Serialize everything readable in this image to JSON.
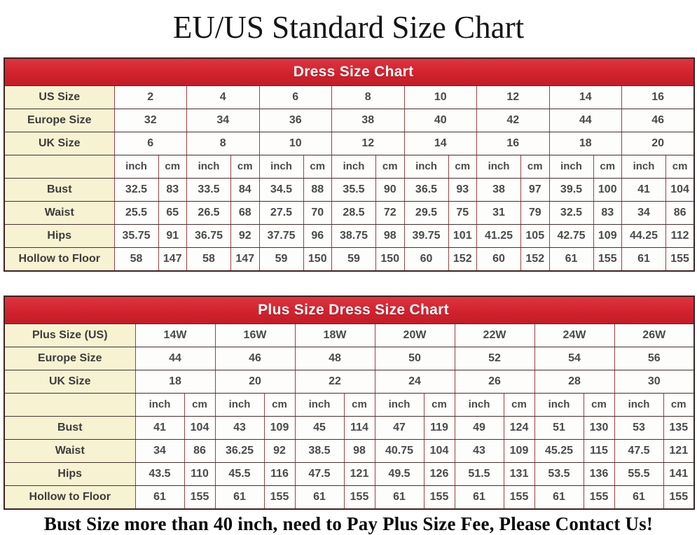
{
  "page": {
    "title": "EU/US Standard Size Chart",
    "footer_note": "Bust Size more than 40 inch, need to Pay Plus Size Fee, Please Contact Us!"
  },
  "colors": {
    "header_bar_red": "#d2232e",
    "label_cell_cream": "#f7f2d2",
    "border_maroon": "#9a4343",
    "cell_text_gray": "#4a4a4a",
    "header_text_white": "#ffffff"
  },
  "chart_data": [
    {
      "type": "table",
      "title": "Dress Size Chart",
      "unit_labels": [
        "inch",
        "cm"
      ],
      "pair_count": 8,
      "size_rows": [
        {
          "label": "US Size",
          "values": [
            "2",
            "4",
            "6",
            "8",
            "10",
            "12",
            "14",
            "16"
          ]
        },
        {
          "label": "Europe Size",
          "values": [
            "32",
            "34",
            "36",
            "38",
            "40",
            "42",
            "44",
            "46"
          ]
        },
        {
          "label": "UK Size",
          "values": [
            "6",
            "8",
            "10",
            "12",
            "14",
            "16",
            "18",
            "20"
          ]
        }
      ],
      "measure_rows": [
        {
          "label": "Bust",
          "values": [
            "32.5",
            "83",
            "33.5",
            "84",
            "34.5",
            "88",
            "35.5",
            "90",
            "36.5",
            "93",
            "38",
            "97",
            "39.5",
            "100",
            "41",
            "104"
          ]
        },
        {
          "label": "Waist",
          "values": [
            "25.5",
            "65",
            "26.5",
            "68",
            "27.5",
            "70",
            "28.5",
            "72",
            "29.5",
            "75",
            "31",
            "79",
            "32.5",
            "83",
            "34",
            "86"
          ]
        },
        {
          "label": "Hips",
          "values": [
            "35.75",
            "91",
            "36.75",
            "92",
            "37.75",
            "96",
            "38.75",
            "98",
            "39.75",
            "101",
            "41.25",
            "105",
            "42.75",
            "109",
            "44.25",
            "112"
          ]
        },
        {
          "label": "Hollow to Floor",
          "values": [
            "58",
            "147",
            "58",
            "147",
            "59",
            "150",
            "59",
            "150",
            "60",
            "152",
            "60",
            "152",
            "61",
            "155",
            "61",
            "155"
          ]
        }
      ]
    },
    {
      "type": "table",
      "title": "Plus Size Dress Size Chart",
      "unit_labels": [
        "inch",
        "cm"
      ],
      "pair_count": 7,
      "size_rows": [
        {
          "label": "Plus Size (US)",
          "values": [
            "14W",
            "16W",
            "18W",
            "20W",
            "22W",
            "24W",
            "26W"
          ]
        },
        {
          "label": "Europe Size",
          "values": [
            "44",
            "46",
            "48",
            "50",
            "52",
            "54",
            "56"
          ]
        },
        {
          "label": "UK Size",
          "values": [
            "18",
            "20",
            "22",
            "24",
            "26",
            "28",
            "30"
          ]
        }
      ],
      "measure_rows": [
        {
          "label": "Bust",
          "values": [
            "41",
            "104",
            "43",
            "109",
            "45",
            "114",
            "47",
            "119",
            "49",
            "124",
            "51",
            "130",
            "53",
            "135"
          ]
        },
        {
          "label": "Waist",
          "values": [
            "34",
            "86",
            "36.25",
            "92",
            "38.5",
            "98",
            "40.75",
            "104",
            "43",
            "109",
            "45.25",
            "115",
            "47.5",
            "121"
          ]
        },
        {
          "label": "Hips",
          "values": [
            "43.5",
            "110",
            "45.5",
            "116",
            "47.5",
            "121",
            "49.5",
            "126",
            "51.5",
            "131",
            "53.5",
            "136",
            "55.5",
            "141"
          ]
        },
        {
          "label": "Hollow to Floor",
          "values": [
            "61",
            "155",
            "61",
            "155",
            "61",
            "155",
            "61",
            "155",
            "61",
            "155",
            "61",
            "155",
            "61",
            "155"
          ]
        }
      ]
    }
  ]
}
